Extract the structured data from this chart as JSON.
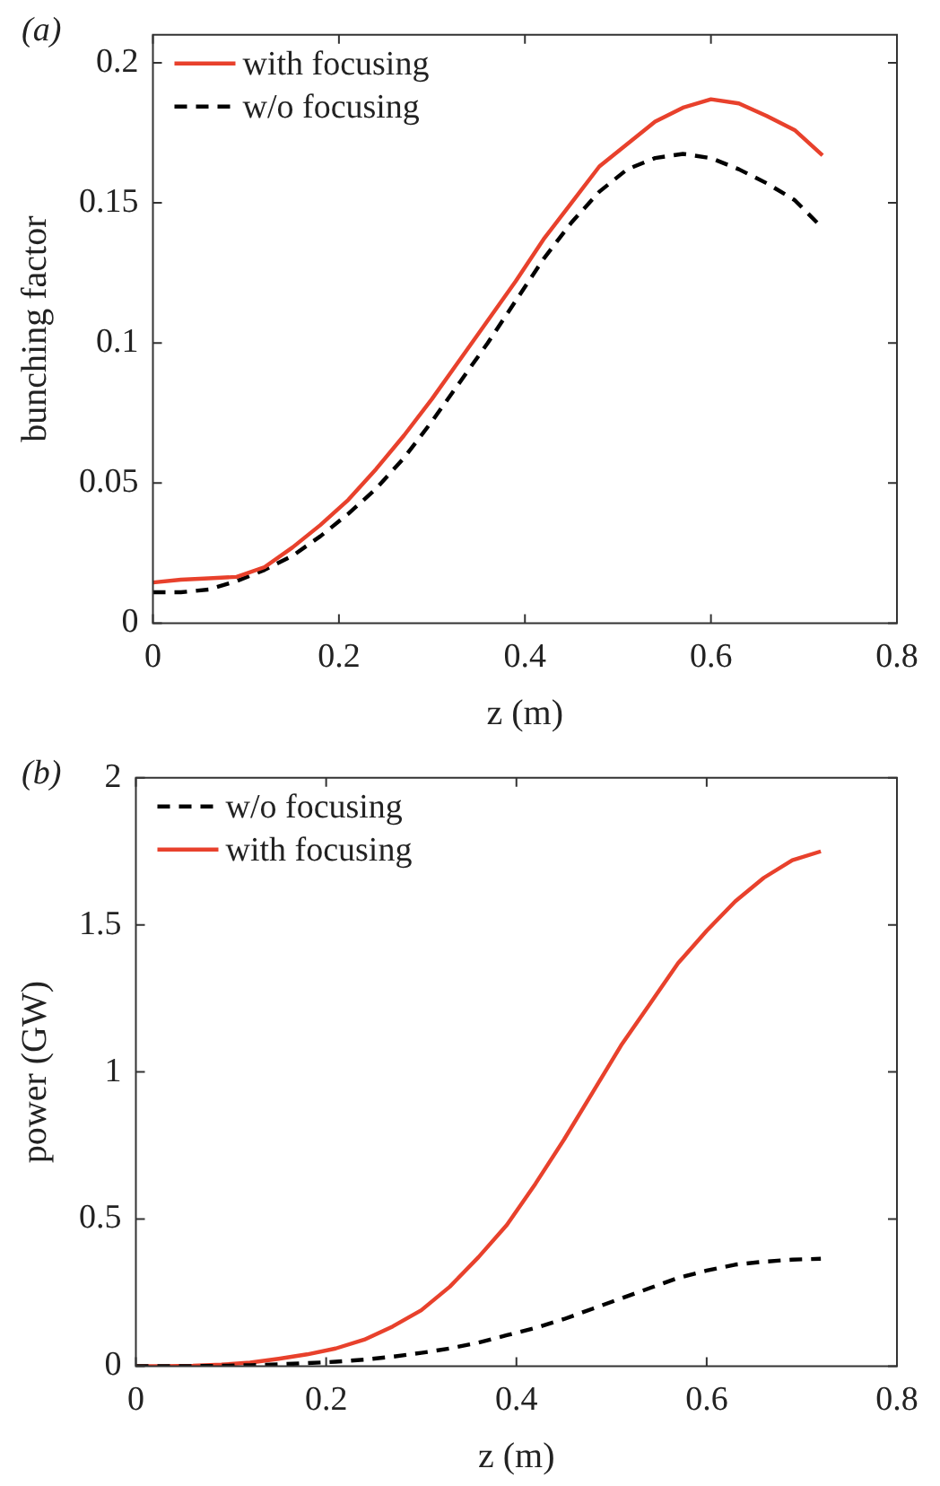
{
  "chart_data": [
    {
      "type": "line",
      "annotations": [
        "(a)"
      ],
      "xlabel": "z (m)",
      "ylabel": "bunching factor",
      "x": [
        0,
        0.03,
        0.06,
        0.09,
        0.12,
        0.15,
        0.18,
        0.21,
        0.24,
        0.27,
        0.3,
        0.33,
        0.36,
        0.39,
        0.42,
        0.45,
        0.48,
        0.51,
        0.54,
        0.57,
        0.6,
        0.63,
        0.66,
        0.69,
        0.72
      ],
      "series": [
        {
          "name": "with focusing",
          "color": "#e8412c",
          "line_style": "solid",
          "values": [
            0.0145,
            0.0155,
            0.016,
            0.0165,
            0.02,
            0.027,
            0.035,
            0.044,
            0.055,
            0.067,
            0.08,
            0.094,
            0.108,
            0.122,
            0.137,
            0.15,
            0.163,
            0.171,
            0.179,
            0.184,
            0.187,
            0.1855,
            0.181,
            0.176,
            0.167
          ]
        },
        {
          "name": "w/o focusing",
          "color": "#000000",
          "line_style": "dashed",
          "values": [
            0.011,
            0.011,
            0.012,
            0.015,
            0.019,
            0.024,
            0.031,
            0.039,
            0.048,
            0.059,
            0.072,
            0.086,
            0.1,
            0.115,
            0.13,
            0.143,
            0.154,
            0.162,
            0.166,
            0.1675,
            0.166,
            0.162,
            0.157,
            0.151,
            0.141
          ]
        }
      ],
      "xlim": [
        0,
        0.8
      ],
      "xticks": [
        0,
        0.2,
        0.4,
        0.6,
        0.8
      ],
      "ylim": [
        0,
        0.21
      ],
      "yticks": [
        0,
        0.05,
        0.1,
        0.15,
        0.2
      ],
      "grid": false,
      "legend": "top left",
      "marker": "none"
    },
    {
      "type": "line",
      "annotations": [
        "(b)"
      ],
      "xlabel": "z (m)",
      "ylabel": "power (GW)",
      "x": [
        0,
        0.03,
        0.06,
        0.09,
        0.12,
        0.15,
        0.18,
        0.21,
        0.24,
        0.27,
        0.3,
        0.33,
        0.36,
        0.39,
        0.42,
        0.45,
        0.48,
        0.51,
        0.54,
        0.57,
        0.6,
        0.63,
        0.66,
        0.69,
        0.72
      ],
      "series": [
        {
          "name": "w/o focusing",
          "color": "#000000",
          "line_style": "dashed",
          "values": [
            0,
            0,
            0,
            0.001,
            0.003,
            0.006,
            0.01,
            0.015,
            0.022,
            0.032,
            0.045,
            0.06,
            0.08,
            0.105,
            0.13,
            0.16,
            0.195,
            0.23,
            0.265,
            0.3,
            0.325,
            0.345,
            0.355,
            0.362,
            0.365
          ]
        },
        {
          "name": "with focusing",
          "color": "#e8412c",
          "line_style": "solid",
          "values": [
            0,
            0,
            0.001,
            0.005,
            0.012,
            0.025,
            0.04,
            0.06,
            0.09,
            0.135,
            0.19,
            0.27,
            0.37,
            0.48,
            0.62,
            0.77,
            0.93,
            1.09,
            1.23,
            1.37,
            1.48,
            1.58,
            1.66,
            1.72,
            1.75
          ]
        }
      ],
      "xlim": [
        0,
        0.8
      ],
      "xticks": [
        0,
        0.2,
        0.4,
        0.6,
        0.8
      ],
      "ylim": [
        0,
        2
      ],
      "yticks": [
        0,
        0.5,
        1,
        1.5,
        2
      ],
      "grid": false,
      "legend": "top left",
      "marker": "none"
    }
  ]
}
